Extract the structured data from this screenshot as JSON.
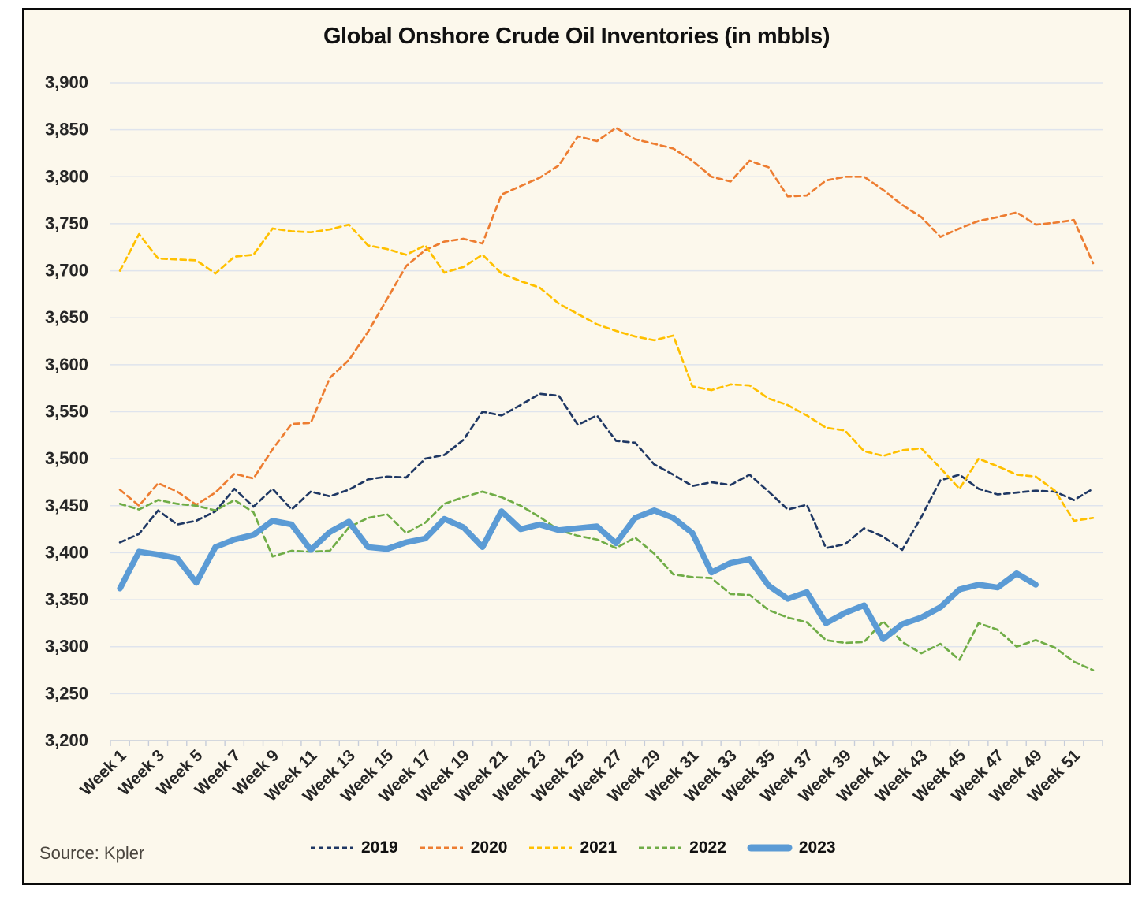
{
  "chart": {
    "title": "Global Onshore Crude Oil Inventories (in mbbls)",
    "source_note": "Source: Kpler",
    "background_color": "#FCF8EC",
    "gridline_color": "#DFE4ED",
    "axis_color": "#C7CDDA",
    "label_color": "#262626"
  },
  "chart_data": {
    "type": "line",
    "title": "Global Onshore Crude Oil Inventories (in mbbls)",
    "xlabel": "",
    "ylabel": "",
    "ylim": [
      3200,
      3900
    ],
    "ytick_step": 50,
    "grid": true,
    "legend_position": "bottom",
    "categories": [
      "Week 1",
      "Week 2",
      "Week 3",
      "Week 4",
      "Week 5",
      "Week 6",
      "Week 7",
      "Week 8",
      "Week 9",
      "Week 10",
      "Week 11",
      "Week 12",
      "Week 13",
      "Week 14",
      "Week 15",
      "Week 16",
      "Week 17",
      "Week 18",
      "Week 19",
      "Week 20",
      "Week 21",
      "Week 22",
      "Week 23",
      "Week 24",
      "Week 25",
      "Week 26",
      "Week 27",
      "Week 28",
      "Week 29",
      "Week 30",
      "Week 31",
      "Week 32",
      "Week 33",
      "Week 34",
      "Week 35",
      "Week 36",
      "Week 37",
      "Week 38",
      "Week 39",
      "Week 40",
      "Week 41",
      "Week 42",
      "Week 43",
      "Week 44",
      "Week 45",
      "Week 46",
      "Week 47",
      "Week 48",
      "Week 49",
      "Week 50",
      "Week 51",
      "Week 52"
    ],
    "x_tick_labels_every": 2,
    "series": [
      {
        "name": "2019",
        "color": "#1F3864",
        "style": "dashed",
        "values": [
          3411,
          3420,
          3445,
          3430,
          3434,
          3444,
          3468,
          3449,
          3468,
          3446,
          3465,
          3460,
          3467,
          3478,
          3481,
          3480,
          3500,
          3504,
          3520,
          3550,
          3546,
          3557,
          3569,
          3567,
          3536,
          3546,
          3519,
          3517,
          3494,
          3483,
          3471,
          3475,
          3472,
          3483,
          3465,
          3446,
          3451,
          3405,
          3409,
          3426,
          3417,
          3403,
          3438,
          3477,
          3483,
          3468,
          3462,
          3464,
          3466,
          3465,
          3456,
          3468
        ]
      },
      {
        "name": "2020",
        "color": "#ED7D31",
        "style": "dashed",
        "values": [
          3467,
          3450,
          3474,
          3465,
          3451,
          3464,
          3484,
          3479,
          3510,
          3537,
          3538,
          3586,
          3605,
          3635,
          3670,
          3705,
          3722,
          3731,
          3734,
          3729,
          3781,
          3790,
          3799,
          3812,
          3843,
          3838,
          3852,
          3840,
          3835,
          3830,
          3817,
          3800,
          3795,
          3817,
          3810,
          3779,
          3780,
          3796,
          3800,
          3800,
          3786,
          3770,
          3757,
          3736,
          3745,
          3753,
          3757,
          3762,
          3749,
          3751,
          3754,
          3708
        ]
      },
      {
        "name": "2021",
        "color": "#FFC000",
        "style": "dashed",
        "values": [
          3700,
          3739,
          3713,
          3712,
          3711,
          3697,
          3715,
          3717,
          3745,
          3742,
          3741,
          3744,
          3749,
          3727,
          3723,
          3717,
          3727,
          3698,
          3704,
          3717,
          3697,
          3689,
          3682,
          3665,
          3654,
          3643,
          3636,
          3630,
          3626,
          3631,
          3577,
          3573,
          3579,
          3578,
          3564,
          3557,
          3546,
          3533,
          3530,
          3508,
          3503,
          3509,
          3511,
          3490,
          3468,
          3500,
          3492,
          3483,
          3481,
          3466,
          3434,
          3437
        ]
      },
      {
        "name": "2022",
        "color": "#70AD47",
        "style": "dashed",
        "values": [
          3452,
          3446,
          3456,
          3452,
          3450,
          3445,
          3456,
          3443,
          3396,
          3402,
          3401,
          3402,
          3427,
          3437,
          3441,
          3421,
          3432,
          3452,
          3459,
          3465,
          3459,
          3450,
          3438,
          3424,
          3418,
          3414,
          3405,
          3416,
          3399,
          3377,
          3374,
          3373,
          3356,
          3355,
          3339,
          3331,
          3326,
          3307,
          3304,
          3305,
          3327,
          3305,
          3293,
          3303,
          3286,
          3325,
          3318,
          3300,
          3307,
          3299,
          3284,
          3275
        ]
      },
      {
        "name": "2023",
        "color": "#5B9BD5",
        "style": "solid-thick",
        "values": [
          3362,
          3401,
          3398,
          3394,
          3368,
          3406,
          3414,
          3419,
          3434,
          3430,
          3403,
          3422,
          3433,
          3406,
          3404,
          3411,
          3415,
          3436,
          3427,
          3406,
          3444,
          3425,
          3430,
          3424,
          3426,
          3428,
          3410,
          3437,
          3445,
          3437,
          3421,
          3379,
          3389,
          3393,
          3365,
          3351,
          3358,
          3325,
          3336,
          3344,
          3308,
          3324,
          3331,
          3342,
          3361,
          3366,
          3363,
          3378,
          3366
        ]
      }
    ]
  }
}
